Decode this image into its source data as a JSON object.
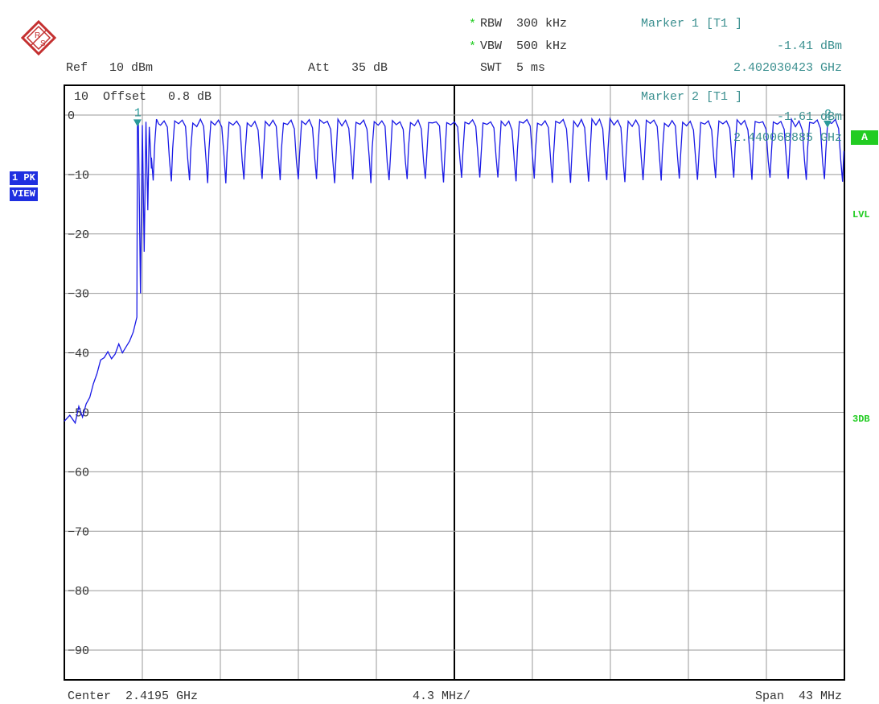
{
  "header": {
    "rbw_star": "*",
    "rbw": "RBW  300 kHz",
    "vbw_star": "*",
    "vbw": "VBW  500 kHz",
    "ref": "Ref   10 dBm",
    "att": "Att   35 dB",
    "swt": "SWT  5 ms",
    "marker1_title": "Marker 1 [T1 ]",
    "marker1_level": "-1.41 dBm",
    "marker1_freq": "2.402030423 GHz"
  },
  "plot_header": {
    "offset": "10  Offset   0.8 dB",
    "marker2_title": "Marker 2 [T1 ]",
    "marker2_level": "-1.61 dBm",
    "marker2_freq": "2.440068885 GHz"
  },
  "left_badges": {
    "trace": "1 PK",
    "view": "VIEW"
  },
  "right_labels": {
    "a": "A",
    "lvl": "LVL",
    "db3": "3DB"
  },
  "footer": {
    "center": "Center  2.4195 GHz",
    "div": "4.3 MHz/",
    "span": "Span  43 MHz"
  },
  "colors": {
    "trace": "#1a1ae6",
    "marker": "#2a9a9a",
    "status_green": "#22cc22",
    "badge_blue": "#1f2fe0"
  },
  "chart_data": {
    "type": "line",
    "xlabel": "",
    "ylabel": "",
    "x_unit": "GHz",
    "y_unit": "dBm",
    "xlim": [
      2.398,
      2.441
    ],
    "ylim": [
      -95,
      5
    ],
    "grid": true,
    "y_ticks": [
      "0",
      "-10",
      "-20",
      "-30",
      "-40",
      "-50",
      "-60",
      "-70",
      "-80",
      "-90"
    ],
    "y_tick_values": [
      0,
      -10,
      -20,
      -30,
      -40,
      -50,
      -60,
      -70,
      -80,
      -90
    ],
    "markers": [
      {
        "label": "1",
        "x": 2.40203,
        "y": -1.41
      },
      {
        "label": "2",
        "x": 2.440069,
        "y": -1.61
      }
    ],
    "series": [
      {
        "style": "channel-hop trace",
        "points": [
          [
            2.398,
            -51.5
          ],
          [
            2.3983,
            -50.5
          ],
          [
            2.3986,
            -51.8
          ],
          [
            2.3988,
            -49.0
          ],
          [
            2.399,
            -50.8
          ],
          [
            2.3992,
            -48.6
          ],
          [
            2.3994,
            -47.5
          ],
          [
            2.3996,
            -45.2
          ],
          [
            2.3998,
            -43.5
          ],
          [
            2.4,
            -41.2
          ],
          [
            2.4002,
            -40.8
          ],
          [
            2.4004,
            -39.8
          ],
          [
            2.4006,
            -41.0
          ],
          [
            2.4008,
            -40.2
          ],
          [
            2.401,
            -38.5
          ],
          [
            2.4012,
            -40.0
          ],
          [
            2.4014,
            -39.0
          ],
          [
            2.4016,
            -38.0
          ],
          [
            2.4018,
            -36.5
          ],
          [
            2.402,
            -34.0
          ],
          [
            2.4022,
            -30.0
          ],
          [
            2.4024,
            -23.0
          ],
          [
            2.4026,
            -16.0
          ],
          [
            2.4028,
            -9.0
          ],
          [
            2.403,
            -4.0
          ],
          [
            2.4032,
            -1.5
          ],
          [
            2.40203,
            -1.41
          ]
        ],
        "channels": {
          "start": 2.402,
          "end": 2.441,
          "spacing": 0.001,
          "peak": -1.0,
          "dip": -10.5
        }
      }
    ]
  }
}
